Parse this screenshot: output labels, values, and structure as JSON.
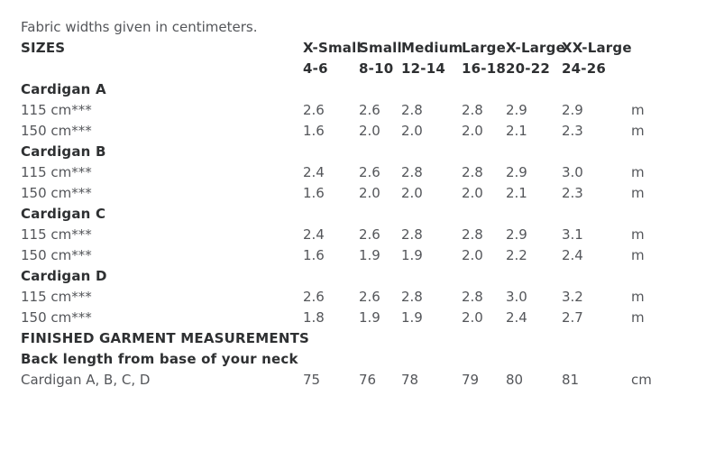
{
  "intro": "Fabric widths given in centimeters.",
  "table": {
    "sizes_label": "SIZES",
    "size_names": [
      "X-Small",
      "Small",
      "Medium",
      "Large",
      "X-Large",
      "XX-Large"
    ],
    "size_ranges": [
      "4-6",
      "8-10",
      "12-14",
      "16-18",
      "20-22",
      "24-26"
    ],
    "sections": [
      {
        "name": "Cardigan A",
        "rows": [
          {
            "label": "115 cm***",
            "values": [
              "2.6",
              "2.6",
              "2.8",
              "2.8",
              "2.9",
              "2.9"
            ],
            "unit": "m"
          },
          {
            "label": "150 cm***",
            "values": [
              "1.6",
              "2.0",
              "2.0",
              "2.0",
              "2.1",
              "2.3"
            ],
            "unit": "m"
          }
        ]
      },
      {
        "name": "Cardigan B",
        "rows": [
          {
            "label": "115 cm***",
            "values": [
              "2.4",
              "2.6",
              "2.8",
              "2.8",
              "2.9",
              "3.0"
            ],
            "unit": "m"
          },
          {
            "label": "150 cm***",
            "values": [
              "1.6",
              "2.0",
              "2.0",
              "2.0",
              "2.1",
              "2.3"
            ],
            "unit": "m"
          }
        ]
      },
      {
        "name": "Cardigan C",
        "rows": [
          {
            "label": "115 cm***",
            "values": [
              "2.4",
              "2.6",
              "2.8",
              "2.8",
              "2.9",
              "3.1"
            ],
            "unit": "m"
          },
          {
            "label": "150 cm***",
            "values": [
              "1.6",
              "1.9",
              "1.9",
              "2.0",
              "2.2",
              "2.4"
            ],
            "unit": "m"
          }
        ]
      },
      {
        "name": "Cardigan D",
        "rows": [
          {
            "label": "115 cm***",
            "values": [
              "2.6",
              "2.6",
              "2.8",
              "2.8",
              "3.0",
              "3.2"
            ],
            "unit": "m"
          },
          {
            "label": "150 cm***",
            "values": [
              "1.8",
              "1.9",
              "1.9",
              "2.0",
              "2.4",
              "2.7"
            ],
            "unit": "m"
          }
        ]
      }
    ],
    "finished_heading": "FINISHED GARMENT MEASUREMENTS",
    "back_length_heading": "Back length from base of your neck",
    "finished_rows": [
      {
        "label": "Cardigan A, B, C, D",
        "values": [
          "75",
          "76",
          "78",
          "79",
          "80",
          "81"
        ],
        "unit": "cm"
      }
    ]
  },
  "colors": {
    "text_regular": "#54565a",
    "text_bold": "#2e3032",
    "background": "#ffffff"
  }
}
